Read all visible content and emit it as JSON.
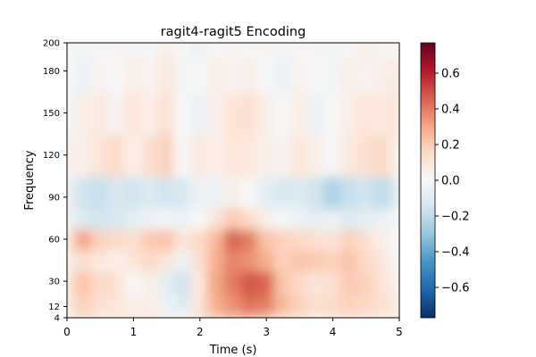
{
  "chart_data": {
    "type": "heatmap",
    "title": "ragit4-ragit5 Encoding",
    "xlabel": "Time (s)",
    "ylabel": "Frequency",
    "xlim": [
      0,
      5
    ],
    "ylim": [
      4,
      200
    ],
    "x_ticks": [
      0,
      1,
      2,
      3,
      4,
      5
    ],
    "y_ticks": [
      4,
      12,
      30,
      60,
      90,
      120,
      150,
      180,
      200
    ],
    "colormap": "RdBu_r",
    "colorbar": {
      "range": [
        -0.77,
        0.77
      ],
      "ticks": [
        -0.6,
        -0.4,
        -0.2,
        0.0,
        0.2,
        0.4,
        0.6
      ],
      "tick_labels": [
        "−0.6",
        "−0.4",
        "−0.2",
        "0.0",
        "0.2",
        "0.4",
        "0.6"
      ]
    },
    "grid": false,
    "time_s": [
      0.0,
      0.25,
      0.5,
      0.75,
      1.0,
      1.25,
      1.5,
      1.75,
      2.0,
      2.25,
      2.5,
      2.75,
      3.0,
      3.25,
      3.5,
      3.75,
      4.0,
      4.25,
      4.5,
      4.75,
      5.0
    ],
    "frequency_hz": [
      4,
      12,
      30,
      45,
      60,
      75,
      90,
      120,
      150,
      180,
      200
    ],
    "values": [
      [
        0.05,
        0.15,
        0.1,
        0.08,
        0.1,
        0.12,
        0.05,
        0.0,
        0.12,
        0.22,
        0.28,
        0.3,
        0.25,
        0.18,
        0.15,
        0.1,
        0.12,
        0.14,
        0.12,
        0.1,
        0.05
      ],
      [
        0.08,
        0.18,
        0.12,
        0.1,
        0.05,
        0.05,
        -0.05,
        -0.1,
        0.1,
        0.28,
        0.35,
        0.42,
        0.4,
        0.25,
        0.18,
        0.12,
        0.14,
        0.18,
        0.16,
        0.12,
        0.08
      ],
      [
        0.1,
        0.22,
        0.15,
        0.12,
        0.0,
        0.05,
        -0.08,
        -0.15,
        0.08,
        0.3,
        0.4,
        0.48,
        0.45,
        0.22,
        0.15,
        0.1,
        0.12,
        0.2,
        0.18,
        0.1,
        0.05
      ],
      [
        0.05,
        0.12,
        0.08,
        0.05,
        0.1,
        0.15,
        0.1,
        -0.05,
        0.12,
        0.28,
        0.38,
        0.35,
        0.28,
        0.18,
        0.22,
        0.2,
        0.18,
        0.22,
        0.15,
        0.1,
        0.0
      ],
      [
        0.1,
        0.3,
        0.18,
        0.15,
        0.12,
        0.2,
        0.22,
        0.1,
        0.15,
        0.25,
        0.45,
        0.4,
        0.22,
        0.18,
        0.15,
        0.12,
        0.1,
        0.18,
        0.12,
        0.05,
        0.0
      ],
      [
        -0.05,
        -0.1,
        -0.15,
        -0.12,
        -0.08,
        -0.05,
        -0.02,
        -0.05,
        0.0,
        0.1,
        0.2,
        0.15,
        0.05,
        0.0,
        -0.05,
        -0.08,
        -0.05,
        -0.1,
        -0.08,
        -0.05,
        -0.02
      ],
      [
        -0.05,
        -0.15,
        -0.18,
        -0.12,
        -0.15,
        -0.1,
        -0.15,
        -0.12,
        -0.05,
        -0.05,
        0.05,
        0.0,
        -0.08,
        -0.12,
        -0.1,
        -0.15,
        -0.25,
        -0.18,
        -0.15,
        -0.2,
        -0.1
      ],
      [
        0.05,
        0.05,
        0.1,
        0.15,
        0.05,
        0.12,
        0.18,
        0.0,
        0.08,
        0.05,
        0.1,
        0.08,
        0.05,
        0.02,
        0.1,
        0.05,
        0.0,
        0.08,
        0.12,
        0.15,
        0.05
      ],
      [
        -0.02,
        0.05,
        0.08,
        0.02,
        0.1,
        0.05,
        0.12,
        0.0,
        -0.05,
        0.05,
        0.1,
        0.12,
        0.05,
        0.0,
        0.05,
        -0.05,
        0.0,
        0.05,
        0.1,
        0.08,
        0.12
      ],
      [
        0.0,
        -0.05,
        0.02,
        0.0,
        0.05,
        0.02,
        0.08,
        -0.02,
        0.0,
        0.05,
        0.02,
        0.05,
        0.0,
        -0.05,
        0.02,
        0.0,
        -0.02,
        0.05,
        0.02,
        0.05,
        0.08
      ],
      [
        0.0,
        -0.02,
        0.0,
        0.02,
        -0.02,
        0.0,
        0.05,
        0.0,
        -0.05,
        0.0,
        0.02,
        0.0,
        0.02,
        -0.02,
        0.0,
        0.02,
        -0.02,
        0.0,
        0.05,
        0.02,
        0.0
      ]
    ]
  }
}
